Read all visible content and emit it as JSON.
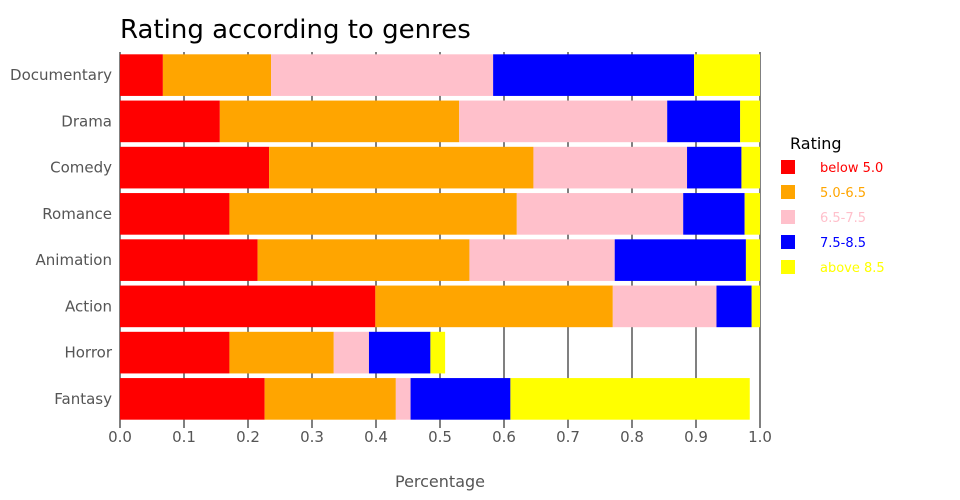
{
  "chart_data": {
    "type": "bar",
    "orientation": "horizontal",
    "stacked": true,
    "title": "Rating according to genres",
    "xlabel": "Percentage",
    "ylabel": "",
    "xlim": [
      0,
      1
    ],
    "xticks": [
      "0.0",
      "0.1",
      "0.2",
      "0.3",
      "0.4",
      "0.5",
      "0.6",
      "0.7",
      "0.8",
      "0.9",
      "1.0"
    ],
    "grid": "vertical",
    "legend": {
      "title": "Rating",
      "position": "right"
    },
    "categories": [
      "Documentary",
      "Drama",
      "Comedy",
      "Romance",
      "Animation",
      "Action",
      "Horror",
      "Fantasy"
    ],
    "series": [
      {
        "name": "below 5.0",
        "color": "#ff0000",
        "values": [
          0.067,
          0.156,
          0.233,
          0.171,
          0.215,
          0.399,
          0.171,
          0.226
        ]
      },
      {
        "name": "5.0-6.5",
        "color": "#ffa500",
        "values": [
          0.169,
          0.374,
          0.413,
          0.449,
          0.331,
          0.371,
          0.163,
          0.205
        ]
      },
      {
        "name": "6.5-7.5",
        "color": "#ffc0cb",
        "values": [
          0.347,
          0.325,
          0.24,
          0.26,
          0.227,
          0.162,
          0.055,
          0.023
        ]
      },
      {
        "name": "7.5-8.5",
        "color": "#0000ff",
        "values": [
          0.314,
          0.114,
          0.085,
          0.096,
          0.205,
          0.055,
          0.096,
          0.156
        ]
      },
      {
        "name": "above 8.5",
        "color": "#ffff00",
        "values": [
          0.103,
          0.031,
          0.029,
          0.024,
          0.022,
          0.013,
          0.023,
          0.374
        ]
      }
    ]
  }
}
